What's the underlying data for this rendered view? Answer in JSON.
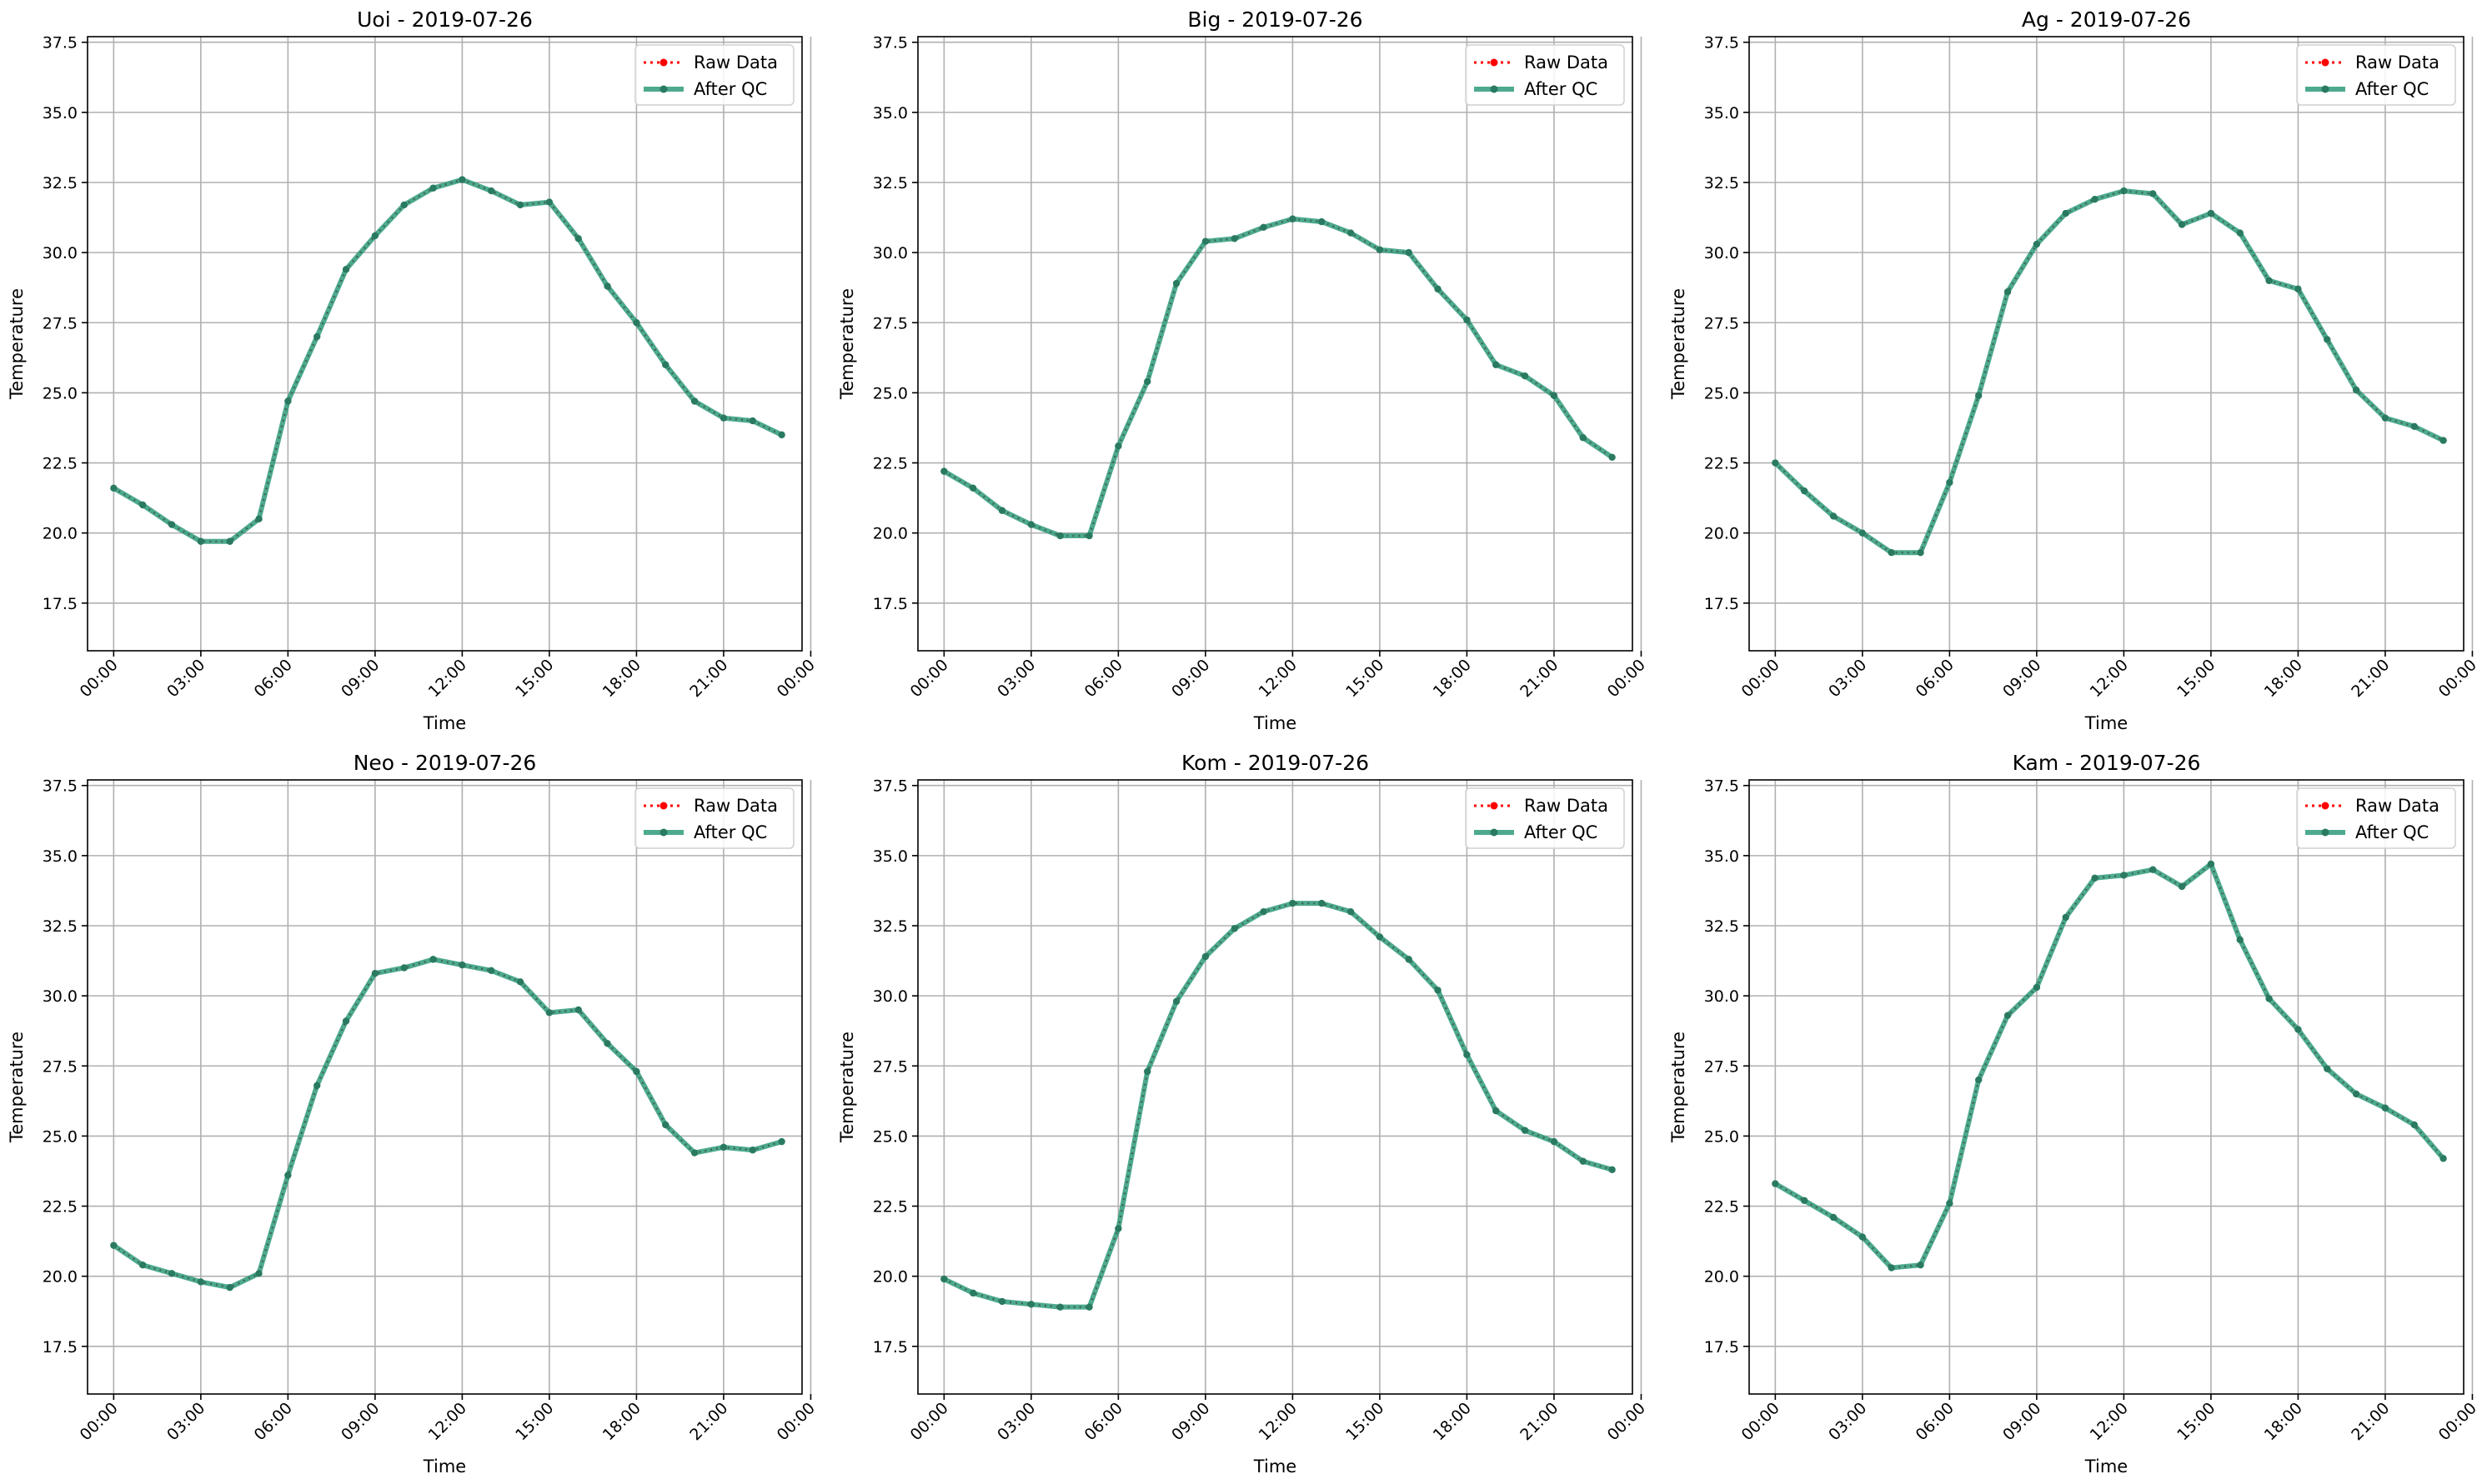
{
  "figure": {
    "series_names": {
      "raw": "Raw Data",
      "qc": "After QC"
    },
    "colors": {
      "raw": "#ff0000",
      "qc": "#2e9b7b",
      "qc_marker": "#2a7a61",
      "grid": "#b0b0b0",
      "axes": "#000000"
    }
  },
  "chart_data": [
    {
      "type": "line",
      "title": "Uoi - 2019-07-26",
      "xlabel": "Time",
      "ylabel": "Temperature",
      "x_unit": "hour of day",
      "xlim": [
        -0.9,
        23.7
      ],
      "ylim": [
        15.8,
        37.7
      ],
      "x_ticks": [
        0,
        3,
        6,
        9,
        12,
        15,
        18,
        21,
        24
      ],
      "x_tick_labels": [
        "00:00",
        "03:00",
        "06:00",
        "09:00",
        "12:00",
        "15:00",
        "18:00",
        "21:00",
        "00:00"
      ],
      "y_ticks": [
        17.5,
        20.0,
        22.5,
        25.0,
        27.5,
        30.0,
        32.5,
        35.0,
        37.5
      ],
      "y_tick_labels": [
        "17.5",
        "20.0",
        "22.5",
        "25.0",
        "27.5",
        "30.0",
        "32.5",
        "35.0",
        "37.5"
      ],
      "grid": true,
      "legend": "top-right",
      "x": [
        0,
        1,
        2,
        3,
        4,
        5,
        6,
        7,
        8,
        9,
        10,
        11,
        12,
        13,
        14,
        15,
        16,
        17,
        18,
        19,
        20,
        21,
        22,
        23
      ],
      "series": [
        {
          "name": "Raw Data",
          "values": [
            21.6,
            21.0,
            20.3,
            19.7,
            19.7,
            20.5,
            24.7,
            27.0,
            29.4,
            30.6,
            31.7,
            32.3,
            32.6,
            32.2,
            31.7,
            31.8,
            30.5,
            28.8,
            27.5,
            26.0,
            24.7,
            24.1,
            24.0,
            23.5
          ]
        },
        {
          "name": "After QC",
          "values": [
            21.6,
            21.0,
            20.3,
            19.7,
            19.7,
            20.5,
            24.7,
            27.0,
            29.4,
            30.6,
            31.7,
            32.3,
            32.6,
            32.2,
            31.7,
            31.8,
            30.5,
            28.8,
            27.5,
            26.0,
            24.7,
            24.1,
            24.0,
            23.5
          ]
        }
      ]
    },
    {
      "type": "line",
      "title": "Big - 2019-07-26",
      "xlabel": "Time",
      "ylabel": "Temperature",
      "x_unit": "hour of day",
      "xlim": [
        -0.9,
        23.7
      ],
      "ylim": [
        15.8,
        37.7
      ],
      "x_ticks": [
        0,
        3,
        6,
        9,
        12,
        15,
        18,
        21,
        24
      ],
      "x_tick_labels": [
        "00:00",
        "03:00",
        "06:00",
        "09:00",
        "12:00",
        "15:00",
        "18:00",
        "21:00",
        "00:00"
      ],
      "y_ticks": [
        17.5,
        20.0,
        22.5,
        25.0,
        27.5,
        30.0,
        32.5,
        35.0,
        37.5
      ],
      "y_tick_labels": [
        "17.5",
        "20.0",
        "22.5",
        "25.0",
        "27.5",
        "30.0",
        "32.5",
        "35.0",
        "37.5"
      ],
      "grid": true,
      "legend": "top-right",
      "x": [
        0,
        1,
        2,
        3,
        4,
        5,
        6,
        7,
        8,
        9,
        10,
        11,
        12,
        13,
        14,
        15,
        16,
        17,
        18,
        19,
        20,
        21,
        22,
        23
      ],
      "series": [
        {
          "name": "Raw Data",
          "values": [
            22.2,
            21.6,
            20.8,
            20.3,
            19.9,
            19.9,
            23.1,
            25.4,
            28.9,
            30.4,
            30.5,
            30.9,
            31.2,
            31.1,
            30.7,
            30.1,
            30.0,
            28.7,
            27.6,
            26.0,
            25.6,
            24.9,
            23.4,
            22.7
          ]
        },
        {
          "name": "After QC",
          "values": [
            22.2,
            21.6,
            20.8,
            20.3,
            19.9,
            19.9,
            23.1,
            25.4,
            28.9,
            30.4,
            30.5,
            30.9,
            31.2,
            31.1,
            30.7,
            30.1,
            30.0,
            28.7,
            27.6,
            26.0,
            25.6,
            24.9,
            23.4,
            22.7
          ]
        }
      ]
    },
    {
      "type": "line",
      "title": "Ag - 2019-07-26",
      "xlabel": "Time",
      "ylabel": "Temperature",
      "x_unit": "hour of day",
      "xlim": [
        -0.9,
        23.7
      ],
      "ylim": [
        15.8,
        37.7
      ],
      "x_ticks": [
        0,
        3,
        6,
        9,
        12,
        15,
        18,
        21,
        24
      ],
      "x_tick_labels": [
        "00:00",
        "03:00",
        "06:00",
        "09:00",
        "12:00",
        "15:00",
        "18:00",
        "21:00",
        "00:00"
      ],
      "y_ticks": [
        17.5,
        20.0,
        22.5,
        25.0,
        27.5,
        30.0,
        32.5,
        35.0,
        37.5
      ],
      "y_tick_labels": [
        "17.5",
        "20.0",
        "22.5",
        "25.0",
        "27.5",
        "30.0",
        "32.5",
        "35.0",
        "37.5"
      ],
      "grid": true,
      "legend": "top-right",
      "x": [
        0,
        1,
        2,
        3,
        4,
        5,
        6,
        7,
        8,
        9,
        10,
        11,
        12,
        13,
        14,
        15,
        16,
        17,
        18,
        19,
        20,
        21,
        22,
        23
      ],
      "series": [
        {
          "name": "Raw Data",
          "values": [
            22.5,
            21.5,
            20.6,
            20.0,
            19.3,
            19.3,
            21.8,
            24.9,
            28.6,
            30.3,
            31.4,
            31.9,
            32.2,
            32.1,
            31.0,
            31.4,
            30.7,
            29.0,
            28.7,
            26.9,
            25.1,
            24.1,
            23.8,
            23.3
          ]
        },
        {
          "name": "After QC",
          "values": [
            22.5,
            21.5,
            20.6,
            20.0,
            19.3,
            19.3,
            21.8,
            24.9,
            28.6,
            30.3,
            31.4,
            31.9,
            32.2,
            32.1,
            31.0,
            31.4,
            30.7,
            29.0,
            28.7,
            26.9,
            25.1,
            24.1,
            23.8,
            23.3
          ]
        }
      ]
    },
    {
      "type": "line",
      "title": "Neo - 2019-07-26",
      "xlabel": "Time",
      "ylabel": "Temperature",
      "x_unit": "hour of day",
      "xlim": [
        -0.9,
        23.7
      ],
      "ylim": [
        15.8,
        37.7
      ],
      "x_ticks": [
        0,
        3,
        6,
        9,
        12,
        15,
        18,
        21,
        24
      ],
      "x_tick_labels": [
        "00:00",
        "03:00",
        "06:00",
        "09:00",
        "12:00",
        "15:00",
        "18:00",
        "21:00",
        "00:00"
      ],
      "y_ticks": [
        17.5,
        20.0,
        22.5,
        25.0,
        27.5,
        30.0,
        32.5,
        35.0,
        37.5
      ],
      "y_tick_labels": [
        "17.5",
        "20.0",
        "22.5",
        "25.0",
        "27.5",
        "30.0",
        "32.5",
        "35.0",
        "37.5"
      ],
      "grid": true,
      "legend": "top-right",
      "x": [
        0,
        1,
        2,
        3,
        4,
        5,
        6,
        7,
        8,
        9,
        10,
        11,
        12,
        13,
        14,
        15,
        16,
        17,
        18,
        19,
        20,
        21,
        22,
        23
      ],
      "series": [
        {
          "name": "Raw Data",
          "values": [
            21.1,
            20.4,
            20.1,
            19.8,
            19.6,
            20.1,
            23.6,
            26.8,
            29.1,
            30.8,
            31.0,
            31.3,
            31.1,
            30.9,
            30.5,
            29.4,
            29.5,
            28.3,
            27.3,
            25.4,
            24.4,
            24.6,
            24.5,
            24.8
          ]
        },
        {
          "name": "After QC",
          "values": [
            21.1,
            20.4,
            20.1,
            19.8,
            19.6,
            20.1,
            23.6,
            26.8,
            29.1,
            30.8,
            31.0,
            31.3,
            31.1,
            30.9,
            30.5,
            29.4,
            29.5,
            28.3,
            27.3,
            25.4,
            24.4,
            24.6,
            24.5,
            24.8
          ]
        }
      ]
    },
    {
      "type": "line",
      "title": "Kom - 2019-07-26",
      "xlabel": "Time",
      "ylabel": "Temperature",
      "x_unit": "hour of day",
      "xlim": [
        -0.9,
        23.7
      ],
      "ylim": [
        15.8,
        37.7
      ],
      "x_ticks": [
        0,
        3,
        6,
        9,
        12,
        15,
        18,
        21,
        24
      ],
      "x_tick_labels": [
        "00:00",
        "03:00",
        "06:00",
        "09:00",
        "12:00",
        "15:00",
        "18:00",
        "21:00",
        "00:00"
      ],
      "y_ticks": [
        17.5,
        20.0,
        22.5,
        25.0,
        27.5,
        30.0,
        32.5,
        35.0,
        37.5
      ],
      "y_tick_labels": [
        "17.5",
        "20.0",
        "22.5",
        "25.0",
        "27.5",
        "30.0",
        "32.5",
        "35.0",
        "37.5"
      ],
      "grid": true,
      "legend": "top-right",
      "x": [
        0,
        1,
        2,
        3,
        4,
        5,
        6,
        7,
        8,
        9,
        10,
        11,
        12,
        13,
        14,
        15,
        16,
        17,
        18,
        19,
        20,
        21,
        22,
        23
      ],
      "series": [
        {
          "name": "Raw Data",
          "values": [
            19.9,
            19.4,
            19.1,
            19.0,
            18.9,
            18.9,
            21.7,
            27.3,
            29.8,
            31.4,
            32.4,
            33.0,
            33.3,
            33.3,
            33.0,
            32.1,
            31.3,
            30.2,
            27.9,
            25.9,
            25.2,
            24.8,
            24.1,
            23.8
          ]
        },
        {
          "name": "After QC",
          "values": [
            19.9,
            19.4,
            19.1,
            19.0,
            18.9,
            18.9,
            21.7,
            27.3,
            29.8,
            31.4,
            32.4,
            33.0,
            33.3,
            33.3,
            33.0,
            32.1,
            31.3,
            30.2,
            27.9,
            25.9,
            25.2,
            24.8,
            24.1,
            23.8
          ]
        }
      ]
    },
    {
      "type": "line",
      "title": "Kam - 2019-07-26",
      "xlabel": "Time",
      "ylabel": "Temperature",
      "x_unit": "hour of day",
      "xlim": [
        -0.9,
        23.7
      ],
      "ylim": [
        15.8,
        37.7
      ],
      "x_ticks": [
        0,
        3,
        6,
        9,
        12,
        15,
        18,
        21,
        24
      ],
      "x_tick_labels": [
        "00:00",
        "03:00",
        "06:00",
        "09:00",
        "12:00",
        "15:00",
        "18:00",
        "21:00",
        "00:00"
      ],
      "y_ticks": [
        17.5,
        20.0,
        22.5,
        25.0,
        27.5,
        30.0,
        32.5,
        35.0,
        37.5
      ],
      "y_tick_labels": [
        "17.5",
        "20.0",
        "22.5",
        "25.0",
        "27.5",
        "30.0",
        "32.5",
        "35.0",
        "37.5"
      ],
      "grid": true,
      "legend": "top-right",
      "x": [
        0,
        1,
        2,
        3,
        4,
        5,
        6,
        7,
        8,
        9,
        10,
        11,
        12,
        13,
        14,
        15,
        16,
        17,
        18,
        19,
        20,
        21,
        22,
        23
      ],
      "series": [
        {
          "name": "Raw Data",
          "values": [
            23.3,
            22.7,
            22.1,
            21.4,
            20.3,
            20.4,
            22.6,
            27.0,
            29.3,
            30.3,
            32.8,
            34.2,
            34.3,
            34.5,
            33.9,
            34.7,
            32.0,
            29.9,
            28.8,
            27.4,
            26.5,
            26.0,
            25.4,
            24.2
          ]
        },
        {
          "name": "After QC",
          "values": [
            23.3,
            22.7,
            22.1,
            21.4,
            20.3,
            20.4,
            22.6,
            27.0,
            29.3,
            30.3,
            32.8,
            34.2,
            34.3,
            34.5,
            33.9,
            34.7,
            32.0,
            29.9,
            28.8,
            27.4,
            26.5,
            26.0,
            25.4,
            24.2
          ]
        }
      ]
    }
  ]
}
